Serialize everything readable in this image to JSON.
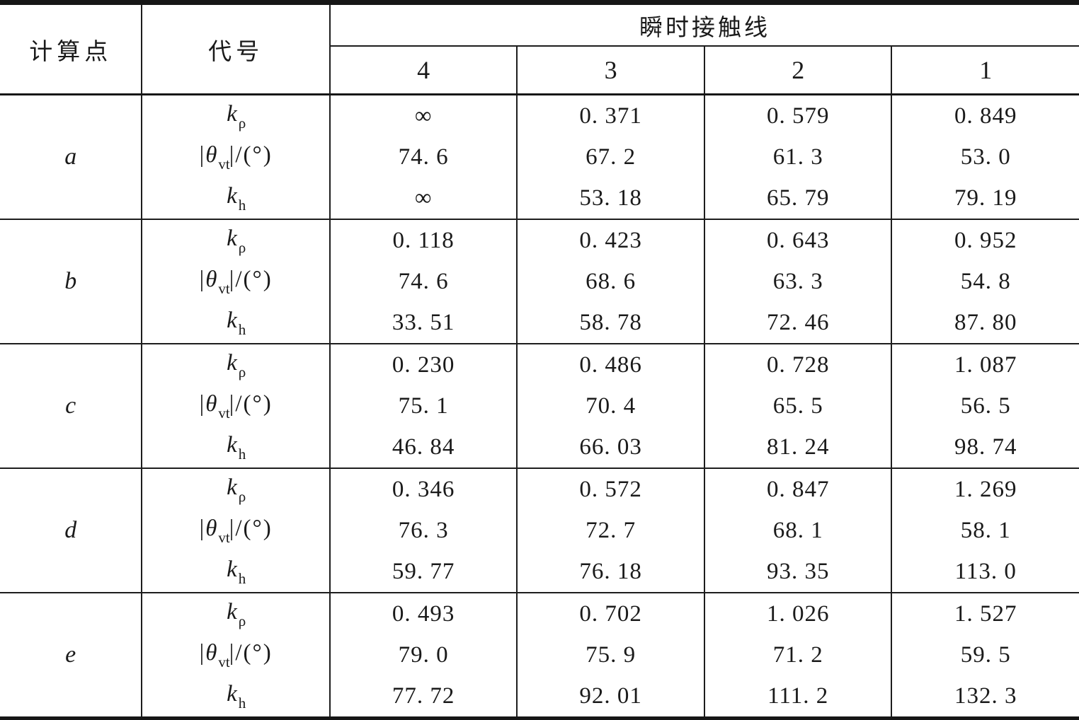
{
  "chart_data": {
    "type": "table",
    "header": {
      "point_col": "计算点",
      "symbol_col": "代号",
      "group_col": "瞬时接触线",
      "contact_lines": [
        "4",
        "3",
        "2",
        "1"
      ]
    },
    "row_groups": [
      {
        "point": "a",
        "rows": [
          {
            "sym": {
              "pre": "",
              "base": "k",
              "sub": "ρ",
              "suf": ""
            },
            "values": [
              "∞",
              "0. 371",
              "0. 579",
              "0. 849"
            ]
          },
          {
            "sym": {
              "pre": "|",
              "base": "θ",
              "sub": "vt",
              "suf": "|/(°)"
            },
            "values": [
              "74. 6",
              "67. 2",
              "61. 3",
              "53. 0"
            ]
          },
          {
            "sym": {
              "pre": "",
              "base": "k",
              "sub": "h",
              "suf": ""
            },
            "values": [
              "∞",
              "53. 18",
              "65. 79",
              "79. 19"
            ]
          }
        ]
      },
      {
        "point": "b",
        "rows": [
          {
            "sym": {
              "pre": "",
              "base": "k",
              "sub": "ρ",
              "suf": ""
            },
            "values": [
              "0. 118",
              "0. 423",
              "0. 643",
              "0. 952"
            ]
          },
          {
            "sym": {
              "pre": "|",
              "base": "θ",
              "sub": "vt",
              "suf": "|/(°)"
            },
            "values": [
              "74. 6",
              "68. 6",
              "63. 3",
              "54. 8"
            ]
          },
          {
            "sym": {
              "pre": "",
              "base": "k",
              "sub": "h",
              "suf": ""
            },
            "values": [
              "33. 51",
              "58. 78",
              "72. 46",
              "87. 80"
            ]
          }
        ]
      },
      {
        "point": "c",
        "rows": [
          {
            "sym": {
              "pre": "",
              "base": "k",
              "sub": "ρ",
              "suf": ""
            },
            "values": [
              "0. 230",
              "0. 486",
              "0. 728",
              "1. 087"
            ]
          },
          {
            "sym": {
              "pre": "|",
              "base": "θ",
              "sub": "vt",
              "suf": "|/(°)"
            },
            "values": [
              "75. 1",
              "70. 4",
              "65. 5",
              "56. 5"
            ]
          },
          {
            "sym": {
              "pre": "",
              "base": "k",
              "sub": "h",
              "suf": ""
            },
            "values": [
              "46. 84",
              "66. 03",
              "81. 24",
              "98. 74"
            ]
          }
        ]
      },
      {
        "point": "d",
        "rows": [
          {
            "sym": {
              "pre": "",
              "base": "k",
              "sub": "ρ",
              "suf": ""
            },
            "values": [
              "0. 346",
              "0. 572",
              "0. 847",
              "1. 269"
            ]
          },
          {
            "sym": {
              "pre": "|",
              "base": "θ",
              "sub": "vt",
              "suf": "|/(°)"
            },
            "values": [
              "76. 3",
              "72. 7",
              "68. 1",
              "58. 1"
            ]
          },
          {
            "sym": {
              "pre": "",
              "base": "k",
              "sub": "h",
              "suf": ""
            },
            "values": [
              "59. 77",
              "76. 18",
              "93. 35",
              "113. 0"
            ]
          }
        ]
      },
      {
        "point": "e",
        "rows": [
          {
            "sym": {
              "pre": "",
              "base": "k",
              "sub": "ρ",
              "suf": ""
            },
            "values": [
              "0. 493",
              "0. 702",
              "1. 026",
              "1. 527"
            ]
          },
          {
            "sym": {
              "pre": "|",
              "base": "θ",
              "sub": "vt",
              "suf": "|/(°)"
            },
            "values": [
              "79. 0",
              "75. 9",
              "71. 2",
              "59. 5"
            ]
          },
          {
            "sym": {
              "pre": "",
              "base": "k",
              "sub": "h",
              "suf": ""
            },
            "values": [
              "77. 72",
              "92. 01",
              "111. 2",
              "132. 3"
            ]
          }
        ]
      }
    ],
    "colors": {
      "text": "#1a1a1a",
      "rule": "#1d1d1d",
      "background": "#ffffff"
    }
  }
}
